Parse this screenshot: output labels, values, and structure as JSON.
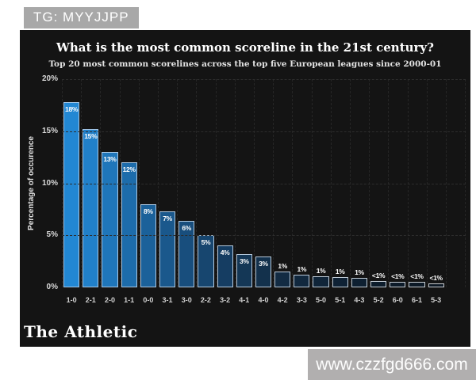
{
  "badge": {
    "text": "TG: MYYJJPP"
  },
  "watermark": {
    "text": "www.czzfgd666.com"
  },
  "footer": {
    "brand": "The Athletic"
  },
  "chart_data": {
    "type": "bar",
    "title": "What is the most common scoreline in the 21st century?",
    "subtitle": "Top 20 most common scorelines across the top five European leagues since 2000-01",
    "xlabel": "",
    "ylabel": "Percentage of occurence",
    "ylim": [
      0,
      20
    ],
    "grid": "dashed",
    "legend": "none",
    "background": "#141414",
    "y_ticks": [
      {
        "label": "20%",
        "value": 20
      },
      {
        "label": "15%",
        "value": 15
      },
      {
        "label": "10%",
        "value": 10
      },
      {
        "label": "5%",
        "value": 5
      },
      {
        "label": "0%",
        "value": 0
      }
    ],
    "categories": [
      "1-0",
      "2-1",
      "2-0",
      "1-1",
      "0-0",
      "3-1",
      "3-0",
      "2-2",
      "3-2",
      "4-1",
      "4-0",
      "4-2",
      "3-3",
      "5-0",
      "5-1",
      "4-3",
      "5-2",
      "6-0",
      "6-1",
      "5-3"
    ],
    "values": [
      17.8,
      15.2,
      13,
      12,
      8,
      7.3,
      6.4,
      5,
      4,
      3.2,
      3,
      1.5,
      1.2,
      1.1,
      1.0,
      0.9,
      0.6,
      0.55,
      0.5,
      0.4
    ],
    "bar_labels": [
      "18%",
      "15%",
      "13%",
      "12%",
      "8%",
      "7%",
      "6%",
      "5%",
      "4%",
      "3%",
      "3%",
      "1%",
      "1%",
      "1%",
      "1%",
      "1%",
      "<1%",
      "<1%",
      "<1%",
      "<1%"
    ],
    "bar_colors": [
      "#2287d3",
      "#2180c9",
      "#1f76ba",
      "#1d6cab",
      "#1b619a",
      "#1a588c",
      "#184e7d",
      "#17466f",
      "#153d62",
      "#143756",
      "#13314c",
      "#122b43",
      "#11283e",
      "#102539",
      "#0f2235",
      "#0e2031",
      "#0d1d2c",
      "#0d1b29",
      "#0c1926",
      "#0c1723"
    ],
    "bar_border_start": "#a3c6e6",
    "bar_border_end": "#c9cdd1",
    "label_color": "#ffffff",
    "grid_color": "#2d2d2d"
  }
}
